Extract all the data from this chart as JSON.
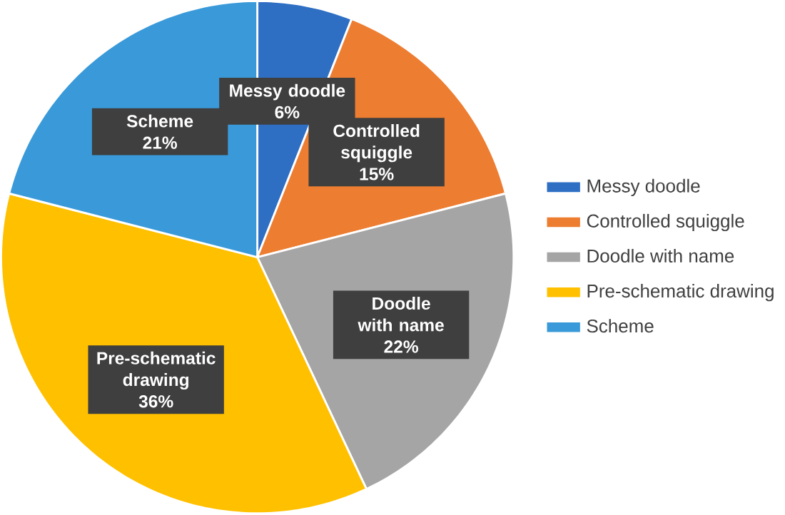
{
  "chart_data": {
    "type": "pie",
    "categories": [
      "Messy doodle",
      "Controlled squiggle",
      "Doodle with name",
      "Pre-schematic drawing",
      "Scheme"
    ],
    "values": [
      6,
      15,
      22,
      36,
      21
    ],
    "value_labels": [
      "6%",
      "15%",
      "22%",
      "36%",
      "21%"
    ],
    "colors": [
      "#2e6fc4",
      "#ed7d31",
      "#a5a5a5",
      "#ffc000",
      "#3a9ad9"
    ],
    "legend": "right"
  }
}
